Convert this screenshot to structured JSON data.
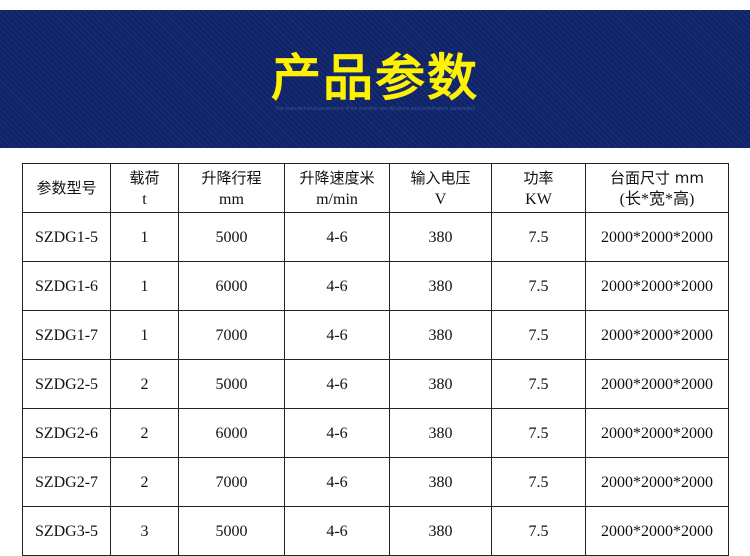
{
  "banner": {
    "title": "产品参数",
    "subtitle": [
      "The main technical parameters of the machine specifications and performance parameters"
    ]
  },
  "table": {
    "headers": [
      [
        "参数型号",
        ""
      ],
      [
        "载荷",
        "t"
      ],
      [
        "升降行程",
        "mm"
      ],
      [
        "升降速度米",
        "m/min"
      ],
      [
        "输入电压",
        "V"
      ],
      [
        "功率",
        "KW"
      ],
      [
        "台面尺寸 mm",
        "(长*宽*高)"
      ]
    ],
    "rows": [
      [
        "SZDG1-5",
        "1",
        "5000",
        "4-6",
        "380",
        "7.5",
        "2000*2000*2000"
      ],
      [
        "SZDG1-6",
        "1",
        "6000",
        "4-6",
        "380",
        "7.5",
        "2000*2000*2000"
      ],
      [
        "SZDG1-7",
        "1",
        "7000",
        "4-6",
        "380",
        "7.5",
        "2000*2000*2000"
      ],
      [
        "SZDG2-5",
        "2",
        "5000",
        "4-6",
        "380",
        "7.5",
        "2000*2000*2000"
      ],
      [
        "SZDG2-6",
        "2",
        "6000",
        "4-6",
        "380",
        "7.5",
        "2000*2000*2000"
      ],
      [
        "SZDG2-7",
        "2",
        "7000",
        "4-6",
        "380",
        "7.5",
        "2000*2000*2000"
      ],
      [
        "SZDG3-5",
        "3",
        "5000",
        "4-6",
        "380",
        "7.5",
        "2000*2000*2000"
      ]
    ]
  },
  "colors": {
    "banner": "#0f2469",
    "title": "#fff200"
  }
}
